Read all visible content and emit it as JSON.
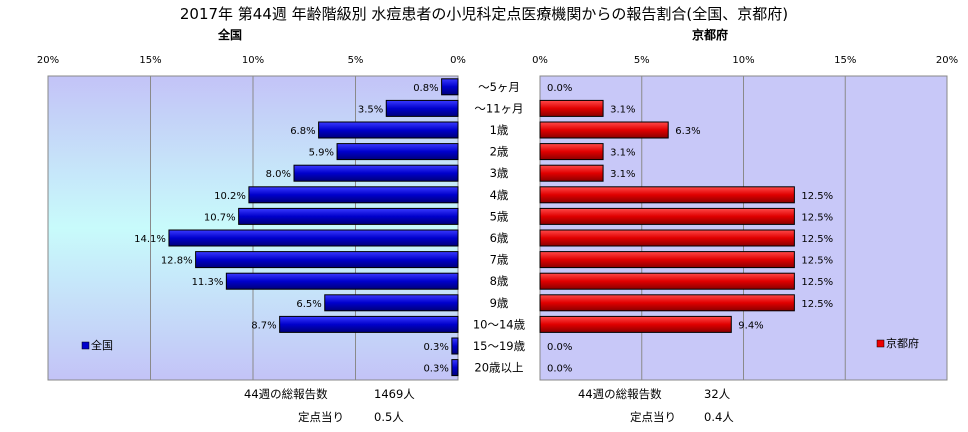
{
  "chart_data": {
    "type": "bar",
    "title": "2017年 第44週 年齢階級別 水痘患者の小児科定点医療機関からの報告割合(全国、京都府)",
    "categories": [
      "～5ヶ月",
      "～11ヶ月",
      "1歳",
      "2歳",
      "3歳",
      "4歳",
      "5歳",
      "6歳",
      "7歳",
      "8歳",
      "9歳",
      "10～14歳",
      "15～19歳",
      "20歳以上"
    ],
    "xlim": [
      0,
      20
    ],
    "ticks": [
      "0%",
      "5%",
      "10%",
      "15%",
      "20%"
    ],
    "grid": true,
    "series": [
      {
        "name": "全国",
        "values": [
          0.8,
          3.5,
          6.8,
          5.9,
          8.0,
          10.2,
          10.7,
          14.1,
          12.8,
          11.3,
          6.5,
          8.7,
          0.3,
          0.3
        ],
        "labels": [
          "0.8%",
          "3.5%",
          "6.8%",
          "5.9%",
          "8.0%",
          "10.2%",
          "10.7%",
          "14.1%",
          "12.8%",
          "11.3%",
          "6.5%",
          "8.7%",
          "0.3%",
          "0.3%"
        ],
        "color": "#0000cc",
        "footer": {
          "total_label": "44週の総報告数",
          "total_value": "1469人",
          "per_label": "定点当り",
          "per_value": "0.5人"
        }
      },
      {
        "name": "京都府",
        "values": [
          0.0,
          3.1,
          6.3,
          3.1,
          3.1,
          12.5,
          12.5,
          12.5,
          12.5,
          12.5,
          12.5,
          9.4,
          0.0,
          0.0
        ],
        "labels": [
          "0.0%",
          "3.1%",
          "6.3%",
          "3.1%",
          "3.1%",
          "12.5%",
          "12.5%",
          "12.5%",
          "12.5%",
          "12.5%",
          "12.5%",
          "9.4%",
          "0.0%",
          "0.0%"
        ],
        "color": "#ee0000",
        "footer": {
          "total_label": "44週の総報告数",
          "total_value": "32人",
          "per_label": "定点当り",
          "per_value": "0.4人"
        }
      }
    ],
    "legend": [
      "bottom-left",
      "bottom-right"
    ]
  }
}
